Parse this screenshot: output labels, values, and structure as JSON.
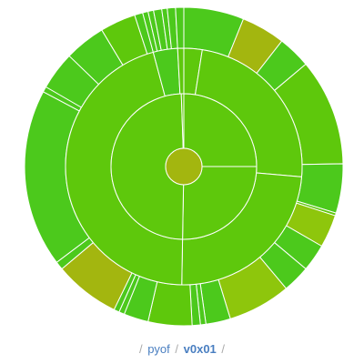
{
  "breadcrumb": {
    "separator": "/",
    "link_label": "pyof",
    "current_label": "v0x01"
  },
  "sunburst": {
    "center": {
      "color": "#a3b60f"
    },
    "rings": [
      {
        "segments": [
          {
            "start": 0,
            "end": 360,
            "color": "#5ec80c"
          }
        ]
      },
      {
        "segments": [
          {
            "start": 0,
            "end": 90,
            "color": "#5ec80c"
          },
          {
            "start": 90,
            "end": 181,
            "color": "#5ec80c"
          },
          {
            "start": 181,
            "end": 358,
            "color": "#5ec80c"
          },
          {
            "start": 358,
            "end": 360,
            "color": "#5ec80c"
          }
        ]
      },
      {
        "segments": [
          {
            "start": 0,
            "end": 9,
            "color": "#5ec80c"
          },
          {
            "start": 9,
            "end": 95,
            "color": "#5ec80c"
          },
          {
            "start": 95,
            "end": 181,
            "color": "#5ec80c"
          },
          {
            "start": 181,
            "end": 345,
            "color": "#5ec80c"
          },
          {
            "start": 345,
            "end": 357,
            "color": "#4cc91c"
          },
          {
            "start": 357,
            "end": 360,
            "color": "#5ec80c"
          }
        ]
      },
      {
        "segments": [
          {
            "start": 0,
            "end": 22,
            "color": "#4cc91c"
          },
          {
            "start": 22,
            "end": 38,
            "color": "#a3b60f"
          },
          {
            "start": 38,
            "end": 50,
            "color": "#4cc91c"
          },
          {
            "start": 50,
            "end": 89,
            "color": "#5ec80c"
          },
          {
            "start": 89,
            "end": 107,
            "color": "#4cc91c"
          },
          {
            "start": 107,
            "end": 108,
            "color": "#5ec80c"
          },
          {
            "start": 108,
            "end": 120,
            "color": "#8ec60c"
          },
          {
            "start": 120,
            "end": 130,
            "color": "#4cc91c"
          },
          {
            "start": 130,
            "end": 140,
            "color": "#4cc91c"
          },
          {
            "start": 140,
            "end": 163,
            "color": "#8ec60c"
          },
          {
            "start": 163,
            "end": 172,
            "color": "#4cc91c"
          },
          {
            "start": 172,
            "end": 174,
            "color": "#4cc91c"
          },
          {
            "start": 174,
            "end": 177,
            "color": "#4cc91c"
          },
          {
            "start": 177,
            "end": 193,
            "color": "#5ec80c"
          },
          {
            "start": 193,
            "end": 202,
            "color": "#4cc91c"
          },
          {
            "start": 202,
            "end": 204,
            "color": "#4cc91c"
          },
          {
            "start": 204,
            "end": 206,
            "color": "#4cc91c"
          },
          {
            "start": 206,
            "end": 230,
            "color": "#a3b60f"
          },
          {
            "start": 230,
            "end": 233,
            "color": "#4cc91c"
          },
          {
            "start": 233,
            "end": 298,
            "color": "#4cc91c"
          },
          {
            "start": 298,
            "end": 300,
            "color": "#4cc91c"
          },
          {
            "start": 300,
            "end": 314,
            "color": "#4cc91c"
          },
          {
            "start": 314,
            "end": 329,
            "color": "#4cc91c"
          },
          {
            "start": 329,
            "end": 342,
            "color": "#5ec80c"
          },
          {
            "start": 342,
            "end": 345,
            "color": "#4cc91c"
          },
          {
            "start": 345,
            "end": 347,
            "color": "#4cc91c"
          },
          {
            "start": 347,
            "end": 349,
            "color": "#4cc91c"
          },
          {
            "start": 349,
            "end": 352,
            "color": "#4cc91c"
          },
          {
            "start": 352,
            "end": 354,
            "color": "#4cc91c"
          },
          {
            "start": 354,
            "end": 357,
            "color": "#4cc91c"
          },
          {
            "start": 357,
            "end": 360,
            "color": "#4cc91c"
          }
        ]
      }
    ]
  }
}
